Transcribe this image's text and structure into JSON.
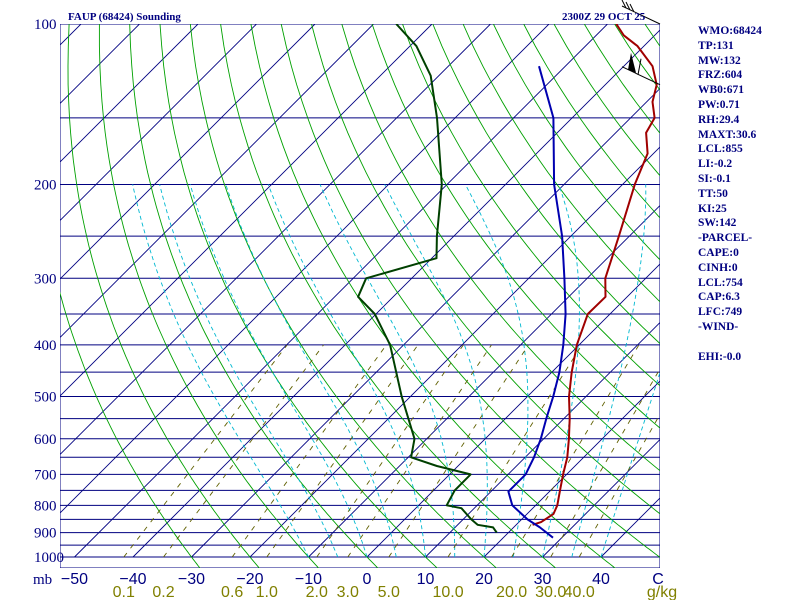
{
  "chart_data": {
    "type": "skew-t log-p sounding",
    "title": "FAUP (68424) Sounding",
    "valid_time": "2300Z 29 OCT 25",
    "pressure_label_unit": "mb",
    "temperature_unit": "C",
    "mixing_ratio_unit": "g/kg",
    "pressure_range": [
      1000,
      100
    ],
    "temperature_range_at_bottom": [
      -50,
      50
    ],
    "pressure_levels": [
      100,
      200,
      300,
      400,
      500,
      600,
      700,
      800,
      900,
      1000
    ],
    "pressure_tick_labels": [
      "100",
      "200",
      "300",
      "400",
      "500",
      "600",
      "700",
      "800",
      "900",
      "1000"
    ],
    "temperature_ticks": [
      -50,
      -40,
      -30,
      -20,
      -10,
      0,
      10,
      20,
      30,
      40
    ],
    "temperature_tick_labels": [
      "−50",
      "−40",
      "−30",
      "−20",
      "−10",
      "0",
      "10",
      "20",
      "30",
      "40"
    ],
    "mixing_ratio_ticks": [
      0.1,
      0.2,
      0.6,
      1.0,
      2.0,
      3.0,
      5.0,
      10.0,
      20.0,
      30.0,
      40.0
    ],
    "mixing_ratio_tick_labels": [
      "0.1",
      "0.2",
      "0.6",
      "1.0",
      "2.0",
      "3.0",
      "5.0",
      "10.0",
      "20.0",
      "30.0",
      "40.0"
    ],
    "series": [
      {
        "name": "temperature",
        "color": "#a00000",
        "points": [
          [
            870,
            22.8
          ],
          [
            860,
            23.8
          ],
          [
            830,
            24.5
          ],
          [
            800,
            23.7
          ],
          [
            750,
            21.6
          ],
          [
            700,
            19.4
          ],
          [
            650,
            17.2
          ],
          [
            600,
            14.3
          ],
          [
            550,
            11.0
          ],
          [
            500,
            7.1
          ],
          [
            450,
            3.4
          ],
          [
            400,
            -0.4
          ],
          [
            350,
            -3.8
          ],
          [
            325,
            -3.7
          ],
          [
            300,
            -6.9
          ],
          [
            250,
            -11.8
          ],
          [
            200,
            -17.9
          ],
          [
            175,
            -21.0
          ],
          [
            160,
            -24.8
          ],
          [
            150,
            -25.9
          ],
          [
            140,
            -29.0
          ],
          [
            130,
            -31.2
          ],
          [
            120,
            -35.1
          ],
          [
            110,
            -41.1
          ],
          [
            105,
            -45.3
          ],
          [
            100,
            -48.5
          ]
        ]
      },
      {
        "name": "dewpoint",
        "color": "#004000",
        "points": [
          [
            900,
            18.0
          ],
          [
            880,
            16.5
          ],
          [
            870,
            13.4
          ],
          [
            850,
            11.4
          ],
          [
            810,
            7.8
          ],
          [
            800,
            4.8
          ],
          [
            750,
            3.6
          ],
          [
            700,
            3.6
          ],
          [
            675,
            -3.6
          ],
          [
            650,
            -9.5
          ],
          [
            600,
            -12.1
          ],
          [
            500,
            -21.5
          ],
          [
            400,
            -32.3
          ],
          [
            350,
            -40.2
          ],
          [
            325,
            -46.0
          ],
          [
            300,
            -47.8
          ],
          [
            275,
            -39.2
          ],
          [
            250,
            -42.9
          ],
          [
            200,
            -50.9
          ],
          [
            150,
            -63.1
          ],
          [
            125,
            -71.4
          ],
          [
            110,
            -78.9
          ],
          [
            100,
            -86.1
          ]
        ]
      },
      {
        "name": "parcel",
        "color": "#0000b0",
        "points": [
          [
            920,
            28.5
          ],
          [
            880,
            24.5
          ],
          [
            850,
            21.0
          ],
          [
            800,
            16.0
          ],
          [
            754,
            13.0
          ],
          [
            700,
            13.0
          ],
          [
            650,
            11.5
          ],
          [
            600,
            9.5
          ],
          [
            550,
            7.0
          ],
          [
            500,
            4.4
          ],
          [
            450,
            1.3
          ],
          [
            400,
            -2.7
          ],
          [
            350,
            -7.6
          ],
          [
            300,
            -13.9
          ],
          [
            250,
            -21.5
          ],
          [
            200,
            -31.7
          ],
          [
            150,
            -43.2
          ],
          [
            120,
            -54.5
          ]
        ]
      }
    ],
    "wind_barbs": [
      {
        "pressure": 100,
        "barb": "short-flagged"
      },
      {
        "pressure": 130,
        "barb": "pennant"
      }
    ],
    "background": {
      "isobars_color": "#000080",
      "isotherms_color": "#000080",
      "dry_adiabats_color": "#00a000",
      "moist_adiabats_color": "#00b8d0",
      "mixing_ratio_color": "#606000",
      "text_color": "#000080",
      "label_color": "#808000"
    }
  },
  "indices": {
    "header": "WMO:68424",
    "lines": [
      "WMO:68424",
      "TP:131",
      "MW:132",
      "FRZ:604",
      "WB0:671",
      "PW:0.71",
      "RH:29.4",
      "MAXT:30.6",
      "LCL:855",
      "LI:-0.2",
      "SI:-0.1",
      "TT:50",
      "KI:25",
      "SW:142",
      "-PARCEL-",
      "CAPE:0",
      "CINH:0",
      "LCL:754",
      "CAP:6.3",
      "LFC:749",
      "-WIND-",
      "",
      "EHI:-0.0"
    ]
  }
}
